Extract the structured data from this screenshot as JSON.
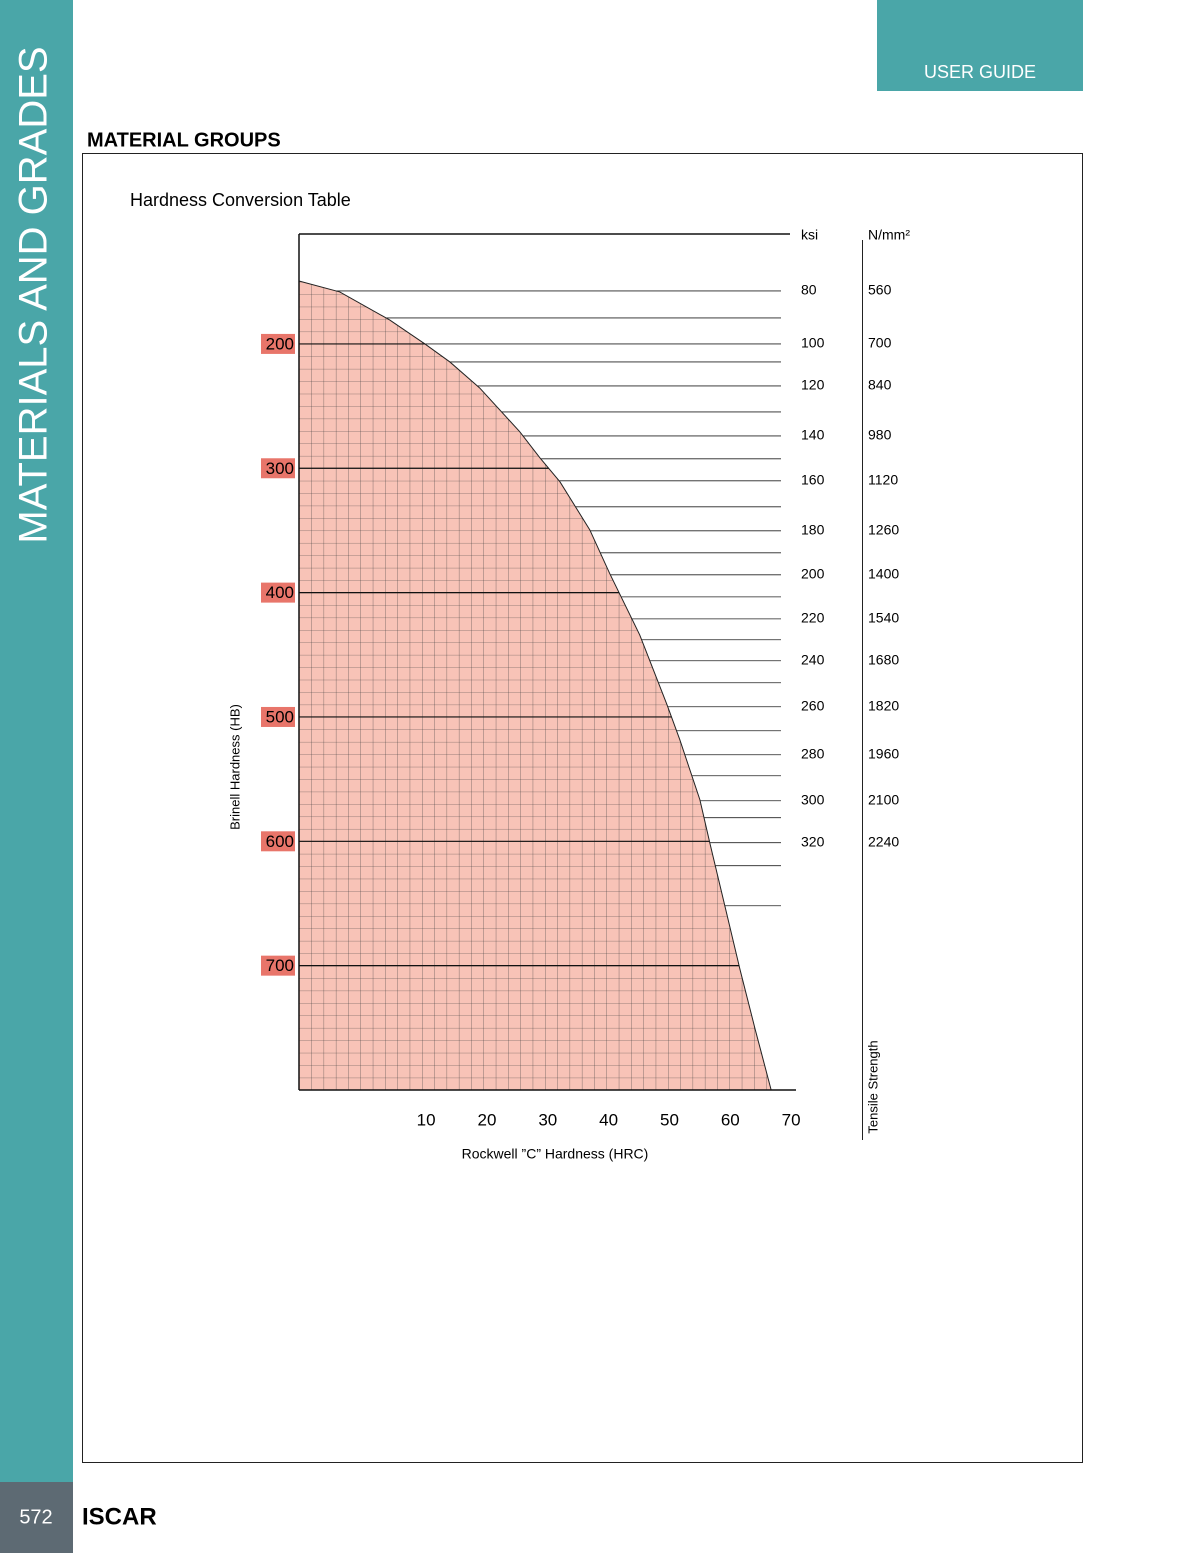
{
  "sidebar": "MATERIALS AND GRADES",
  "header": "USER GUIDE",
  "section_title": "MATERIAL GROUPS",
  "footer": {
    "page": "572",
    "brand": "ISCAR"
  },
  "chart_data": {
    "type": "area",
    "title": "Hardness Conversion Table",
    "x_label": "Rockwell ”C” Hardness (HRC)",
    "y_label": "Brinell Hardness (HB)",
    "color": "#f8c3b7",
    "tick_label_color": "#e8756a",
    "grid": true,
    "y_inverted": true,
    "xlim": [
      -10.9,
      70.8
    ],
    "xticks": [
      10,
      20,
      30,
      40,
      50,
      60,
      70
    ],
    "ylim": [
      111.6,
      800
    ],
    "yticks": [
      200,
      300,
      400,
      500,
      600,
      700
    ],
    "x": [
      -10.9,
      -4.2,
      4.0,
      9.8,
      13.9,
      18.8,
      25.4,
      28.7,
      32.0,
      36.9,
      40.2,
      45.1,
      49.6,
      51.7,
      55.0,
      56.7,
      59.1,
      61.6,
      64.1,
      66.7
    ],
    "values": [
      149.4,
      158.2,
      180.7,
      200,
      214.5,
      235.4,
      270.7,
      291.6,
      310.9,
      349.5,
      384.9,
      433.9,
      490.2,
      518.3,
      566.6,
      602.7,
      651.8,
      703.2,
      751.4,
      799.7
    ],
    "tensile": {
      "title": "Tensile Strength",
      "ksi_label": "ksi",
      "n_label": "N/mm²",
      "hb": [
        157.4,
        179.1,
        200,
        214.5,
        233.8,
        254.7,
        274,
        292.4,
        310.1,
        331,
        350.3,
        368,
        385.7,
        403.4,
        421.1,
        437.9,
        454.8,
        472.5,
        491.8,
        511.1,
        530.4,
        547.3,
        567.4,
        581,
        601.1,
        619.6,
        651.8
      ],
      "ksi": [
        80,
        null,
        100,
        null,
        120,
        null,
        140,
        null,
        160,
        null,
        180,
        null,
        200,
        null,
        220,
        null,
        240,
        null,
        260,
        null,
        280,
        null,
        300,
        null,
        320,
        null,
        null
      ],
      "n_mm2": [
        560,
        null,
        700,
        null,
        840,
        null,
        980,
        null,
        1120,
        null,
        1260,
        null,
        1400,
        null,
        1540,
        null,
        1680,
        null,
        1820,
        null,
        1960,
        null,
        2100,
        null,
        2240,
        null,
        null
      ]
    }
  }
}
